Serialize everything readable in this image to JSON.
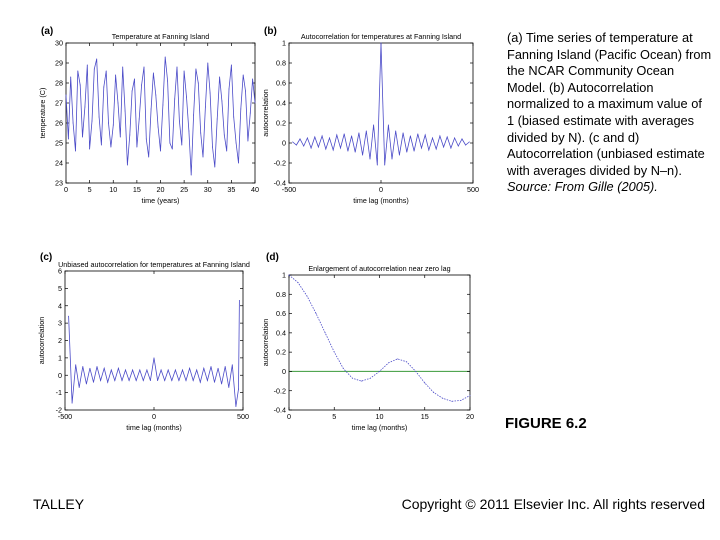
{
  "caption": {
    "main": "(a) Time series of temperature at Fanning Island (Pacific Ocean) from the NCAR Community Ocean Model. (b) Autocorrelation normalized to a maximum value of 1 (biased estimate with averages divided by N). (c and d) Autocorrelation (unbiased estimate with averages divided by N–n).",
    "source": "Source: From Gille (2005)."
  },
  "figure_label": "FIGURE 6.2",
  "footer": {
    "author": "TALLEY",
    "copyright": "Copyright © 2011 Elsevier Inc. All rights reserved"
  },
  "colors": {
    "series": "#4b4bc8",
    "zero_line": "#3a9a3a",
    "axis": "#000000"
  },
  "chart_data": [
    {
      "panel": "(a)",
      "type": "line",
      "title": "Temperature at Fanning Island",
      "xlabel": "time (years)",
      "ylabel": "temperature (C)",
      "xlim": [
        0,
        40
      ],
      "ylim": [
        23,
        30
      ],
      "xticks": [
        0,
        5,
        10,
        15,
        20,
        25,
        30,
        35,
        40
      ],
      "yticks": [
        23,
        24,
        25,
        26,
        27,
        28,
        29,
        30
      ],
      "x": [
        0,
        0.5,
        1,
        1.5,
        2,
        2.5,
        3,
        3.5,
        4,
        4.5,
        5,
        5.5,
        6,
        6.5,
        7,
        7.5,
        8,
        8.5,
        9,
        9.5,
        10,
        10.5,
        11,
        11.5,
        12,
        12.5,
        13,
        13.5,
        14,
        14.5,
        15,
        15.5,
        16,
        16.5,
        17,
        17.5,
        18,
        18.5,
        19,
        19.5,
        20,
        20.5,
        21,
        21.5,
        22,
        22.5,
        23,
        23.5,
        24,
        24.5,
        25,
        25.5,
        26,
        26.5,
        27,
        27.5,
        28,
        28.5,
        29,
        29.5,
        30,
        30.5,
        31,
        31.5,
        32,
        32.5,
        33,
        33.5,
        34,
        34.5,
        35,
        35.5,
        36,
        36.5,
        37,
        37.5,
        38,
        38.5,
        39,
        39.5,
        40
      ],
      "values": [
        27.4,
        25.2,
        28.3,
        26.0,
        24.6,
        28.6,
        27.9,
        25.3,
        26.8,
        28.9,
        24.7,
        26.1,
        28.7,
        29.2,
        26.3,
        24.9,
        27.8,
        28.6,
        26.0,
        24.8,
        25.9,
        28.4,
        27.0,
        25.3,
        28.8,
        26.6,
        23.9,
        25.4,
        27.6,
        28.2,
        24.8,
        26.2,
        27.9,
        28.8,
        25.2,
        24.3,
        26.7,
        28.5,
        27.4,
        25.8,
        24.6,
        26.9,
        29.3,
        28.1,
        25.0,
        24.7,
        27.2,
        28.8,
        26.1,
        24.9,
        28.6,
        27.3,
        25.6,
        23.4,
        26.4,
        28.7,
        28.0,
        25.5,
        24.3,
        26.8,
        29.0,
        27.5,
        24.8,
        23.8,
        26.2,
        28.3,
        27.1,
        25.4,
        24.6,
        27.7,
        28.9,
        26.3,
        25.0,
        24.0,
        26.7,
        28.4,
        27.6,
        25.1,
        26.5,
        28.2,
        27.0
      ]
    },
    {
      "panel": "(b)",
      "type": "line",
      "title": "Autocorrelation for temperatures at Fanning Island",
      "xlabel": "time lag (months)",
      "ylabel": "autocorrelation",
      "xlim": [
        -500,
        500
      ],
      "ylim": [
        -0.4,
        1
      ],
      "xticks": [
        -500,
        0,
        500
      ],
      "yticks": [
        -0.4,
        -0.2,
        0,
        0.2,
        0.4,
        0.6,
        0.8,
        1
      ],
      "x": [
        -480,
        -460,
        -440,
        -420,
        -400,
        -380,
        -360,
        -340,
        -320,
        -300,
        -280,
        -260,
        -240,
        -220,
        -200,
        -180,
        -160,
        -140,
        -120,
        -100,
        -80,
        -60,
        -40,
        -20,
        0,
        20,
        40,
        60,
        80,
        100,
        120,
        140,
        160,
        180,
        200,
        220,
        240,
        260,
        280,
        300,
        320,
        340,
        360,
        380,
        400,
        420,
        440,
        460,
        480
      ],
      "values": [
        0.01,
        -0.02,
        0.04,
        -0.03,
        0.05,
        -0.05,
        0.06,
        -0.04,
        0.07,
        -0.06,
        0.05,
        -0.07,
        0.08,
        -0.05,
        0.09,
        -0.08,
        0.07,
        -0.09,
        0.1,
        -0.12,
        0.12,
        -0.16,
        0.18,
        -0.22,
        1.0,
        -0.22,
        0.18,
        -0.16,
        0.12,
        -0.12,
        0.1,
        -0.09,
        0.07,
        -0.08,
        0.09,
        -0.05,
        0.08,
        -0.07,
        0.05,
        -0.06,
        0.07,
        -0.04,
        0.06,
        -0.05,
        0.05,
        -0.03,
        0.04,
        -0.02,
        0.01
      ]
    },
    {
      "panel": "(c)",
      "type": "line",
      "title": "Unbiased autocorrelation for temperatures at Fanning Island",
      "xlabel": "time lag (months)",
      "ylabel": "autocorrelation",
      "xlim": [
        -500,
        500
      ],
      "ylim": [
        -2,
        6
      ],
      "xticks": [
        -500,
        0,
        500
      ],
      "yticks": [
        -2,
        -1,
        0,
        1,
        2,
        3,
        4,
        5,
        6
      ],
      "x": [
        -480,
        -460,
        -440,
        -420,
        -400,
        -380,
        -360,
        -340,
        -320,
        -300,
        -280,
        -260,
        -240,
        -220,
        -200,
        -180,
        -160,
        -140,
        -120,
        -100,
        -80,
        -60,
        -40,
        -20,
        0,
        20,
        40,
        60,
        80,
        100,
        120,
        140,
        160,
        180,
        200,
        220,
        240,
        260,
        280,
        300,
        320,
        340,
        360,
        380,
        400,
        420,
        440,
        460,
        475,
        480
      ],
      "values": [
        3.4,
        -1.6,
        0.6,
        -0.7,
        0.5,
        -0.5,
        0.4,
        -0.4,
        0.5,
        -0.3,
        0.4,
        -0.4,
        0.3,
        -0.3,
        0.4,
        -0.3,
        0.3,
        -0.3,
        0.3,
        -0.3,
        0.3,
        -0.3,
        0.3,
        -0.3,
        1.0,
        -0.3,
        0.3,
        -0.3,
        0.3,
        -0.3,
        0.3,
        -0.3,
        0.3,
        -0.3,
        0.4,
        -0.3,
        0.3,
        -0.4,
        0.4,
        -0.3,
        0.5,
        -0.4,
        0.4,
        -0.5,
        0.5,
        -0.7,
        0.6,
        -1.8,
        -0.8,
        4.3
      ]
    },
    {
      "panel": "(d)",
      "type": "line",
      "title": "Enlargement of autocorrelation near zero lag",
      "xlabel": "time lag (months)",
      "ylabel": "autocorrelation",
      "xlim": [
        0,
        20
      ],
      "ylim": [
        -0.4,
        1
      ],
      "xticks": [
        0,
        5,
        10,
        15,
        20
      ],
      "yticks": [
        -0.4,
        -0.2,
        0,
        0.2,
        0.4,
        0.6,
        0.8,
        1
      ],
      "x": [
        0,
        1,
        2,
        3,
        4,
        5,
        6,
        7,
        8,
        9,
        10,
        11,
        12,
        13,
        14,
        15,
        16,
        17,
        18,
        19,
        20
      ],
      "values": [
        1.0,
        0.92,
        0.78,
        0.6,
        0.4,
        0.2,
        0.03,
        -0.07,
        -0.1,
        -0.07,
        0.0,
        0.09,
        0.13,
        0.1,
        0.0,
        -0.12,
        -0.22,
        -0.28,
        -0.31,
        -0.3,
        -0.25
      ],
      "reference_line": 0
    }
  ]
}
